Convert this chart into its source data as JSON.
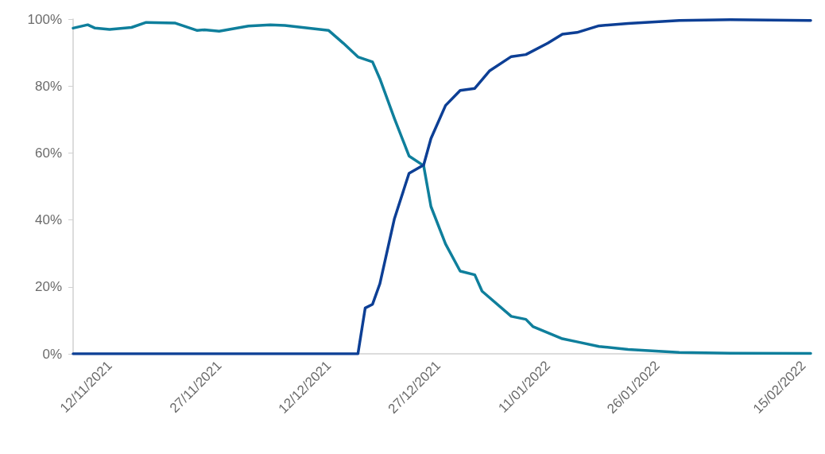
{
  "chart_data": {
    "type": "line",
    "xlim": [
      "2021-11-07",
      "2022-02-16"
    ],
    "xticks": [
      {
        "value": "2021-11-12",
        "label": "12/11/2021"
      },
      {
        "value": "2021-11-27",
        "label": "27/11/2021"
      },
      {
        "value": "2021-12-12",
        "label": "12/12/2021"
      },
      {
        "value": "2021-12-27",
        "label": "27/12/2021"
      },
      {
        "value": "2022-01-11",
        "label": "11/01/2022"
      },
      {
        "value": "2022-01-26",
        "label": "26/01/2022"
      },
      {
        "value": "2022-02-15",
        "label": "15/02/2022"
      }
    ],
    "ylim": [
      0,
      100
    ],
    "yticks": [
      {
        "value": 0,
        "label": "0%"
      },
      {
        "value": 20,
        "label": "20%"
      },
      {
        "value": 40,
        "label": "40%"
      },
      {
        "value": 60,
        "label": "60%"
      },
      {
        "value": 80,
        "label": "80%"
      },
      {
        "value": 100,
        "label": "100%"
      }
    ],
    "grid": false,
    "marker": "none",
    "line_style": "solid",
    "series": [
      {
        "color": "#0f7f9c",
        "x": [
          "2021-11-07",
          "2021-11-09",
          "2021-11-10",
          "2021-11-12",
          "2021-11-15",
          "2021-11-17",
          "2021-11-21",
          "2021-11-24",
          "2021-11-25",
          "2021-11-27",
          "2021-12-01",
          "2021-12-04",
          "2021-12-06",
          "2021-12-12",
          "2021-12-13",
          "2021-12-14",
          "2021-12-16",
          "2021-12-18",
          "2021-12-19",
          "2021-12-21",
          "2021-12-23",
          "2021-12-25",
          "2021-12-26",
          "2021-12-28",
          "2021-12-30",
          "2022-01-01",
          "2022-01-02",
          "2022-01-06",
          "2022-01-08",
          "2022-01-09",
          "2022-01-13",
          "2022-01-15",
          "2022-01-18",
          "2022-01-22",
          "2022-01-29",
          "2022-02-05",
          "2022-02-16"
        ],
        "values": [
          97.3,
          98.3,
          97.3,
          96.9,
          97.5,
          99,
          98.8,
          96.6,
          96.8,
          96.4,
          97.9,
          98.3,
          98.1,
          96.6,
          94.7,
          92.8,
          88.7,
          87.2,
          82.2,
          70.3,
          59.1,
          56.2,
          44,
          32.8,
          24.7,
          23.6,
          18.7,
          11.2,
          10.3,
          8.1,
          4.5,
          3.6,
          2.2,
          1.3,
          0.4,
          0.2,
          0.1
        ]
      },
      {
        "color": "#0d3f95",
        "x": [
          "2021-11-07",
          "2021-12-16",
          "2021-12-17",
          "2021-12-18",
          "2021-12-19",
          "2021-12-21",
          "2021-12-23",
          "2021-12-25",
          "2021-12-26",
          "2021-12-28",
          "2021-12-30",
          "2022-01-01",
          "2022-01-03",
          "2022-01-06",
          "2022-01-08",
          "2022-01-11",
          "2022-01-13",
          "2022-01-15",
          "2022-01-18",
          "2022-01-22",
          "2022-01-29",
          "2022-02-05",
          "2022-02-16"
        ],
        "values": [
          0,
          0,
          13.7,
          14.8,
          20.9,
          40.4,
          53.9,
          56.4,
          64.3,
          74.2,
          78.7,
          79.3,
          84.5,
          88.8,
          89.4,
          92.8,
          95.5,
          96,
          98,
          98.7,
          99.6,
          99.8,
          99.6
        ]
      }
    ]
  }
}
